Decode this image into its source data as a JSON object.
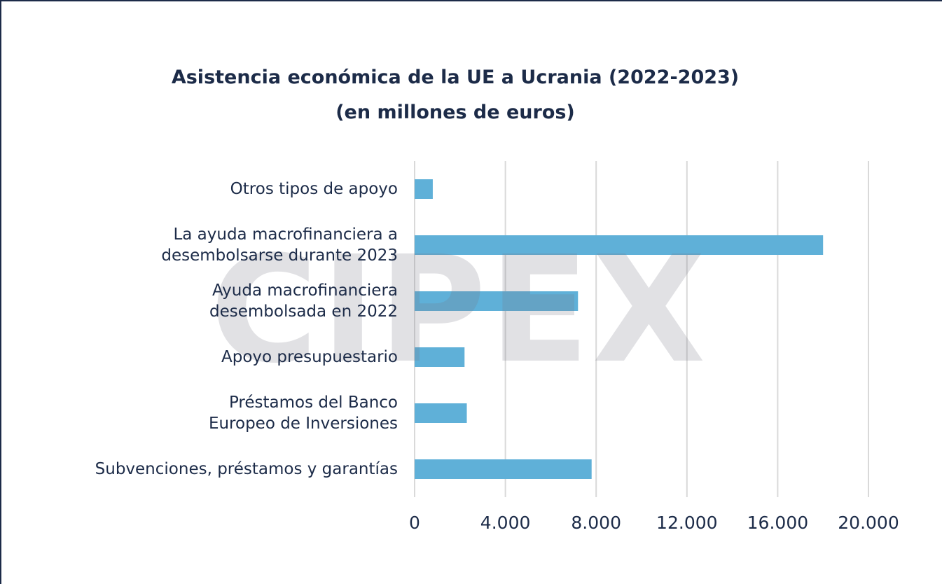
{
  "chart_data": {
    "type": "barh",
    "title": "Asistencia económica de la UE a Ucrania (2022-2023)",
    "subtitle": "(en millones de euros)",
    "watermark": "CIPEX",
    "categories": [
      "Otros tipos de apoyo",
      "La ayuda macrofinanciera a\ndesembolsarse durante 2023",
      "Ayuda macrofinanciera\ndesembolsada en 2022",
      "Apoyo presupuestario",
      "Préstamos del Banco\nEuropeo de Inversiones",
      "Subvenciones, préstamos y garantías"
    ],
    "values": [
      800,
      18000,
      7200,
      2200,
      2300,
      7800
    ],
    "color": "#5fb0d8",
    "xlim": [
      0,
      20000
    ],
    "xticks": [
      0,
      {
        "value": 4000,
        "label": "4.000"
      },
      {
        "value": 8000,
        "label": "8.000"
      },
      {
        "value": 12000,
        "label": "12.000"
      },
      {
        "value": 16000,
        "label": "16.000"
      },
      {
        "value": 20000,
        "label": "20.000"
      }
    ],
    "grid": true
  }
}
